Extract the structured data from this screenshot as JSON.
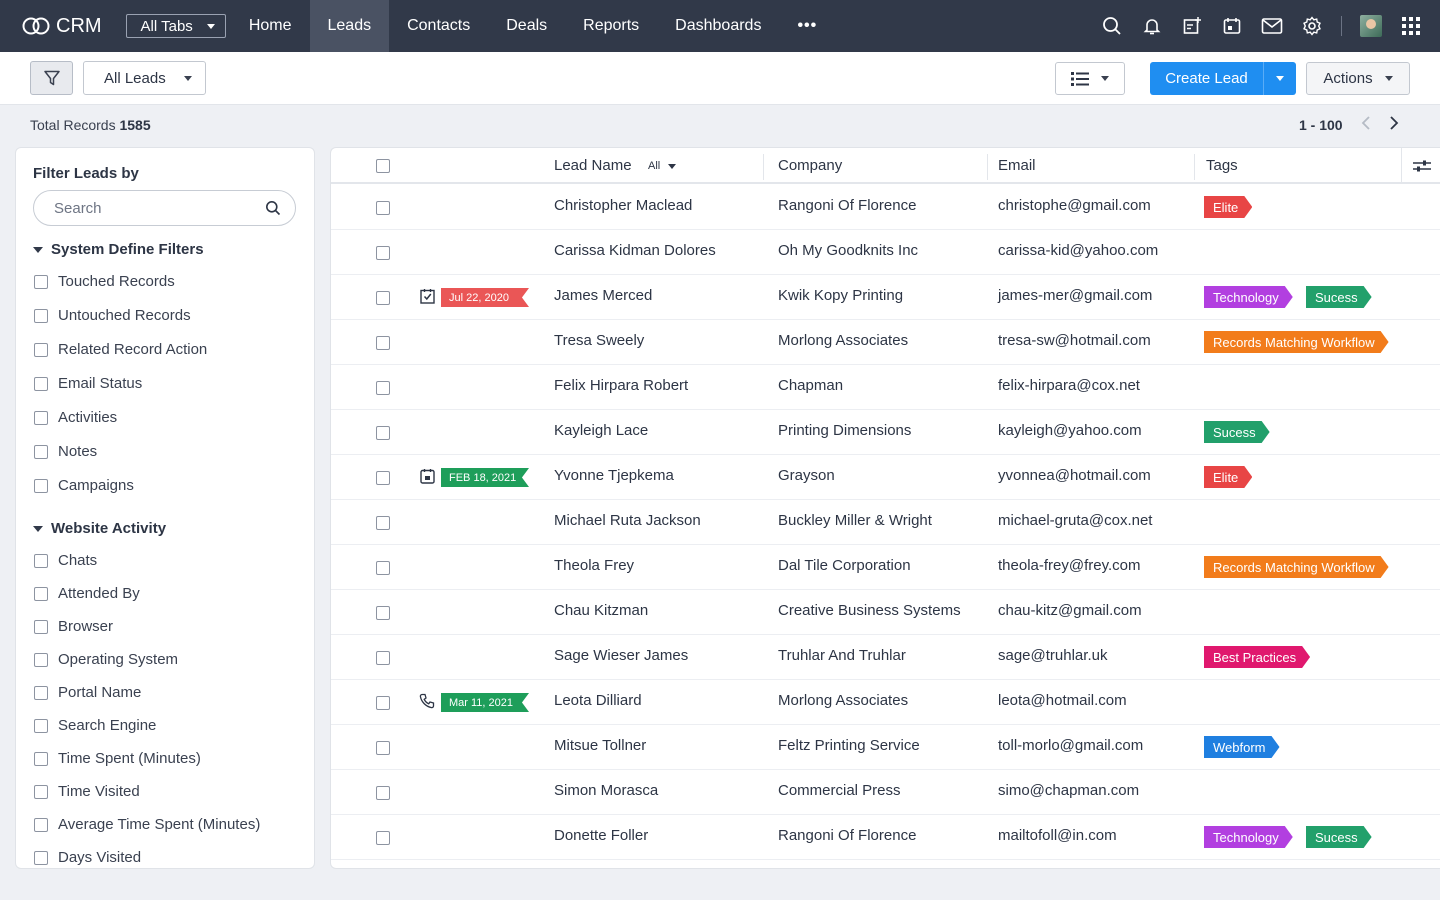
{
  "app": {
    "logo_text": "CRM"
  },
  "nav": {
    "all_tabs": "All Tabs",
    "tabs": [
      {
        "label": "Home",
        "active": false
      },
      {
        "label": "Leads",
        "active": true
      },
      {
        "label": "Contacts",
        "active": false
      },
      {
        "label": "Deals",
        "active": false
      },
      {
        "label": "Reports",
        "active": false
      },
      {
        "label": "Dashboards",
        "active": false
      }
    ],
    "more": "•••",
    "icons": [
      "search-icon",
      "bell-icon",
      "calendar-add-icon",
      "calendar-icon",
      "mail-icon",
      "gear-icon",
      "avatar",
      "apps-grid-icon"
    ]
  },
  "toolbar": {
    "view_filter": "All Leads",
    "create_label": "Create Lead",
    "actions_label": "Actions"
  },
  "records": {
    "total_label": "Total Records",
    "total": "1585",
    "range": "1 - 100"
  },
  "sidebar": {
    "title": "Filter Leads by",
    "search_placeholder": "Search",
    "groups": [
      {
        "title": "System Define Filters",
        "items": [
          "Touched Records",
          "Untouched Records",
          "Related Record Action",
          "Email Status",
          "Activities",
          "Notes",
          "Campaigns"
        ]
      },
      {
        "title": "Website Activity",
        "items": [
          "Chats",
          "Attended By",
          "Browser",
          "Operating System",
          "Portal Name",
          "Search Engine",
          "Time Spent (Minutes)",
          "Time Visited",
          "Average Time Spent (Minutes)",
          "Days Visited"
        ]
      }
    ]
  },
  "table": {
    "columns": {
      "lead_name": "Lead Name",
      "lead_filter": "All",
      "company": "Company",
      "email": "Email",
      "tags": "Tags"
    },
    "rows": [
      {
        "name": "Christopher Maclead",
        "company": "Rangoni Of Florence",
        "email": "christophe@gmail.com",
        "activity": null,
        "tags": [
          {
            "label": "Elite",
            "color": "#e84545"
          }
        ]
      },
      {
        "name": "Carissa Kidman Dolores",
        "company": "Oh My Goodknits Inc",
        "email": "carissa-kid@yahoo.com",
        "activity": null,
        "tags": []
      },
      {
        "name": "James Merced",
        "company": "Kwik Kopy Printing",
        "email": "james-mer@gmail.com",
        "activity": {
          "icon": "task-check-icon",
          "date": "Jul 22, 2020",
          "color": "#ea5656"
        },
        "tags": [
          {
            "label": "Technology",
            "color": "#b23fe0"
          },
          {
            "label": "Sucess",
            "color": "#22a06b"
          }
        ]
      },
      {
        "name": "Tresa Sweely",
        "company": "Morlong Associates",
        "email": "tresa-sw@hotmail.com",
        "activity": null,
        "tags": [
          {
            "label": "Records Matching Workflow",
            "color": "#f27c1b"
          }
        ]
      },
      {
        "name": "Felix Hirpara Robert",
        "company": "Chapman",
        "email": "felix-hirpara@cox.net",
        "activity": null,
        "tags": []
      },
      {
        "name": "Kayleigh Lace",
        "company": "Printing Dimensions",
        "email": "kayleigh@yahoo.com",
        "activity": null,
        "tags": [
          {
            "label": "Sucess",
            "color": "#22a06b"
          }
        ]
      },
      {
        "name": "Yvonne Tjepkema",
        "company": "Grayson",
        "email": "yvonnea@hotmail.com",
        "activity": {
          "icon": "event-calendar-icon",
          "date": "FEB 18, 2021",
          "color": "#1e9e5a"
        },
        "tags": [
          {
            "label": "Elite",
            "color": "#e84545"
          }
        ]
      },
      {
        "name": "Michael Ruta Jackson",
        "company": "Buckley Miller & Wright",
        "email": "michael-gruta@cox.net",
        "activity": null,
        "tags": []
      },
      {
        "name": "Theola Frey",
        "company": "Dal Tile Corporation",
        "email": "theola-frey@frey.com",
        "activity": null,
        "tags": [
          {
            "label": "Records Matching Workflow",
            "color": "#f27c1b"
          }
        ]
      },
      {
        "name": "Chau Kitzman",
        "company": "Creative Business Systems",
        "email": "chau-kitz@gmail.com",
        "activity": null,
        "tags": []
      },
      {
        "name": "Sage Wieser James",
        "company": "Truhlar And Truhlar",
        "email": "sage@truhlar.uk",
        "activity": null,
        "tags": [
          {
            "label": "Best Practices",
            "color": "#e0186e"
          }
        ]
      },
      {
        "name": "Leota Dilliard",
        "company": "Morlong Associates",
        "email": "leota@hotmail.com",
        "activity": {
          "icon": "phone-icon",
          "date": "Mar 11, 2021",
          "color": "#1e9e5a"
        },
        "tags": []
      },
      {
        "name": "Mitsue Tollner",
        "company": "Feltz Printing Service",
        "email": "toll-morlo@gmail.com",
        "activity": null,
        "tags": [
          {
            "label": "Webform",
            "color": "#1f7fe0"
          }
        ]
      },
      {
        "name": "Simon Morasca",
        "company": "Commercial Press",
        "email": "simo@chapman.com",
        "activity": null,
        "tags": []
      },
      {
        "name": "Donette Foller",
        "company": "Rangoni Of Florence",
        "email": "mailtofoll@in.com",
        "activity": null,
        "tags": [
          {
            "label": "Technology",
            "color": "#b23fe0"
          },
          {
            "label": "Sucess",
            "color": "#22a06b"
          }
        ]
      }
    ]
  }
}
